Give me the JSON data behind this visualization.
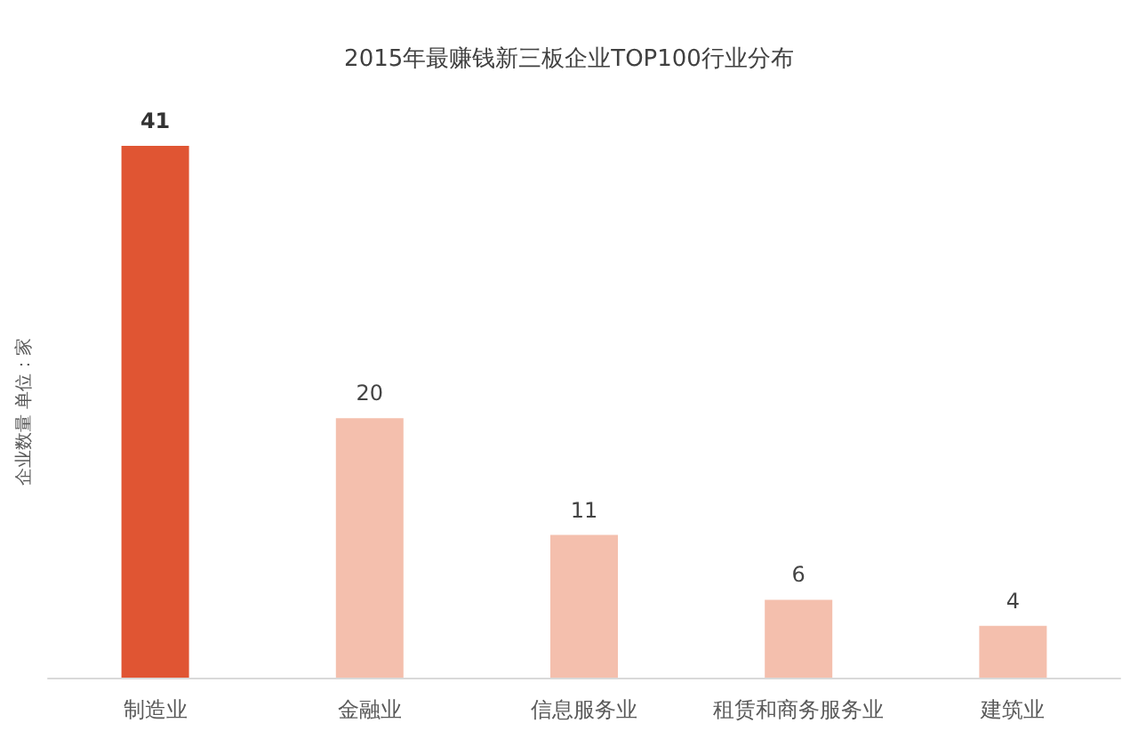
{
  "chart_data": {
    "type": "bar",
    "title": "2015年最赚钱新三板企业TOP100行业分布",
    "ylabel": "企业数量 单位：家",
    "categories": [
      "制造业",
      "金融业",
      "信息服务业",
      "租赁和商务服务业",
      "建筑业"
    ],
    "values": [
      41,
      20,
      11,
      6,
      4
    ],
    "colors": [
      "#e05533",
      "#f4bfad",
      "#f4bfad",
      "#f4bfad",
      "#f4bfad"
    ],
    "data_labels": true,
    "tick_labels": "x",
    "grid": false
  }
}
